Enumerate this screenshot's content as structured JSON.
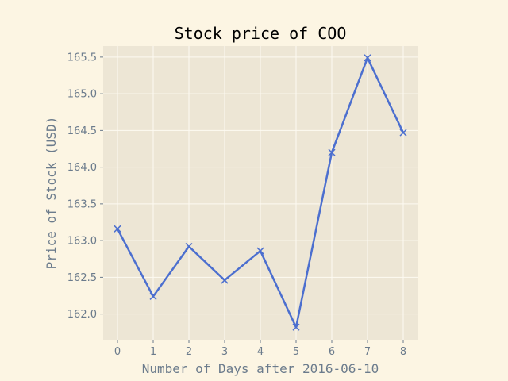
{
  "chart_data": {
    "type": "line",
    "title": "Stock price of COO",
    "xlabel": "Number of Days after 2016-06-10",
    "ylabel": "Price of Stock (USD)",
    "x": [
      0,
      1,
      2,
      3,
      4,
      5,
      6,
      7,
      8
    ],
    "series": [
      {
        "values": [
          163.16,
          162.24,
          162.92,
          162.46,
          162.86,
          161.82,
          164.2,
          165.49,
          164.47
        ]
      }
    ],
    "xlim": [
      -0.4,
      8.4
    ],
    "ylim": [
      161.65,
      165.65
    ],
    "xticks": [
      0,
      1,
      2,
      3,
      4,
      5,
      6,
      7,
      8
    ],
    "yticks": [
      "162.0",
      "162.5",
      "163.0",
      "163.5",
      "164.0",
      "164.5",
      "165.0",
      "165.5"
    ],
    "marker": "x",
    "grid": true,
    "colors": {
      "background": "#fcf5e3",
      "plot_background": "#ede6d5",
      "grid": "#fdfaf2",
      "line": "#4c6fcf",
      "title": "#000000",
      "labels": "#6b7b8c"
    }
  }
}
